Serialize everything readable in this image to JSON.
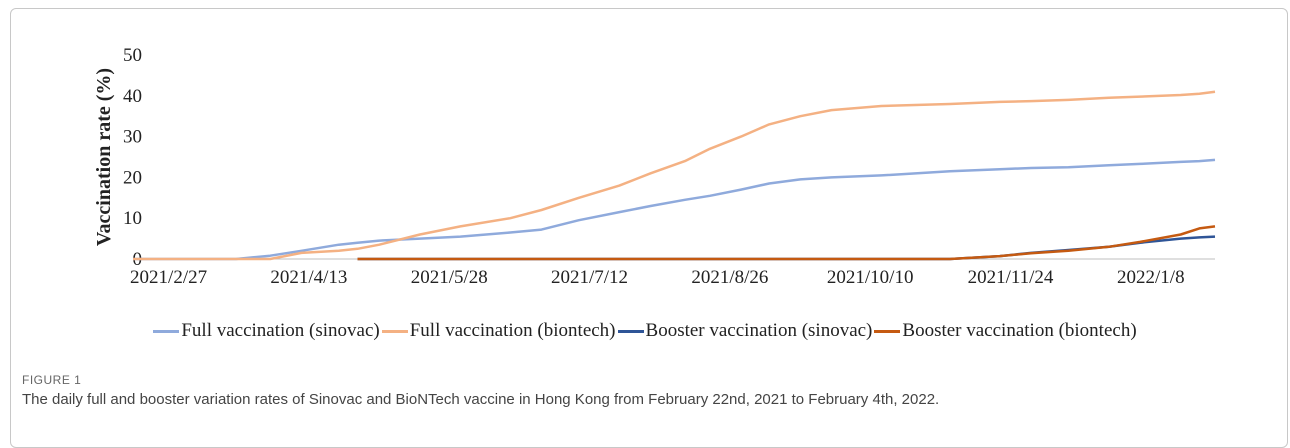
{
  "chart_data": {
    "type": "line",
    "y_label": "Vaccination rate (%)",
    "figure_label": "FIGURE 1",
    "caption": "The daily full and booster variation rates of Sinovac and BioNTech vaccine in Hong Kong from February 22nd, 2021 to February 4th, 2022.",
    "x": [
      "2021/2/22",
      "2021/3/27",
      "2021/4/7",
      "2021/4/17",
      "2021/4/29",
      "2021/5/5",
      "2021/5/12",
      "2021/5/25",
      "2021/6/7",
      "2021/6/23",
      "2021/7/3",
      "2021/7/15",
      "2021/7/28",
      "2021/8/7",
      "2021/8/18",
      "2021/8/26",
      "2021/9/5",
      "2021/9/14",
      "2021/9/24",
      "2021/10/4",
      "2021/10/20",
      "2021/11/11",
      "2021/11/27",
      "2021/12/7",
      "2021/12/19",
      "2022/1/1",
      "2022/1/11",
      "2022/1/24",
      "2022/1/30",
      "2022/2/4"
    ],
    "xlim": [
      "2021/2/22",
      "2022/2/4"
    ],
    "xticks": [
      "2021/2/27",
      "2021/4/13",
      "2021/5/28",
      "2021/7/12",
      "2021/8/26",
      "2021/10/10",
      "2021/11/24",
      "2022/1/8"
    ],
    "ylim": [
      0,
      50
    ],
    "yticks": [
      0,
      10,
      20,
      30,
      40,
      50
    ],
    "series": [
      {
        "name": "Full vaccination (sinovac)",
        "color": "#8faadc",
        "values": [
          0,
          0,
          0.8,
          2,
          3.5,
          4,
          4.5,
          5,
          5.5,
          6.5,
          7.2,
          9.5,
          11.5,
          13,
          14.5,
          15.5,
          17,
          18.5,
          19.5,
          20,
          20.5,
          21.5,
          22,
          22.3,
          22.5,
          23,
          23.3,
          23.8,
          24,
          24.3
        ]
      },
      {
        "name": "Full vaccination (biontech)",
        "color": "#f4b183",
        "values": [
          0,
          0,
          0,
          1.5,
          2,
          2.5,
          3.5,
          6,
          8,
          10,
          12,
          15,
          18,
          21,
          24,
          27,
          30,
          33,
          35,
          36.5,
          37.5,
          38,
          38.5,
          38.7,
          39,
          39.5,
          39.8,
          40.2,
          40.5,
          41
        ]
      },
      {
        "name": "Booster vaccination (sinovac)",
        "color": "#2f5597",
        "values": [
          null,
          null,
          null,
          null,
          null,
          0,
          0,
          0,
          0,
          0,
          0,
          0,
          0,
          0,
          0,
          0,
          0,
          0,
          0,
          0,
          0,
          0,
          0.7,
          1.5,
          2.2,
          3,
          4,
          5,
          5.3,
          5.5
        ]
      },
      {
        "name": "Booster vaccination (biontech)",
        "color": "#c55a11",
        "values": [
          null,
          null,
          null,
          null,
          null,
          0,
          0,
          0,
          0,
          0,
          0,
          0,
          0,
          0,
          0,
          0,
          0,
          0,
          0,
          0,
          0,
          0,
          0.7,
          1.4,
          2,
          3,
          4.2,
          6,
          7.5,
          8
        ]
      }
    ]
  }
}
